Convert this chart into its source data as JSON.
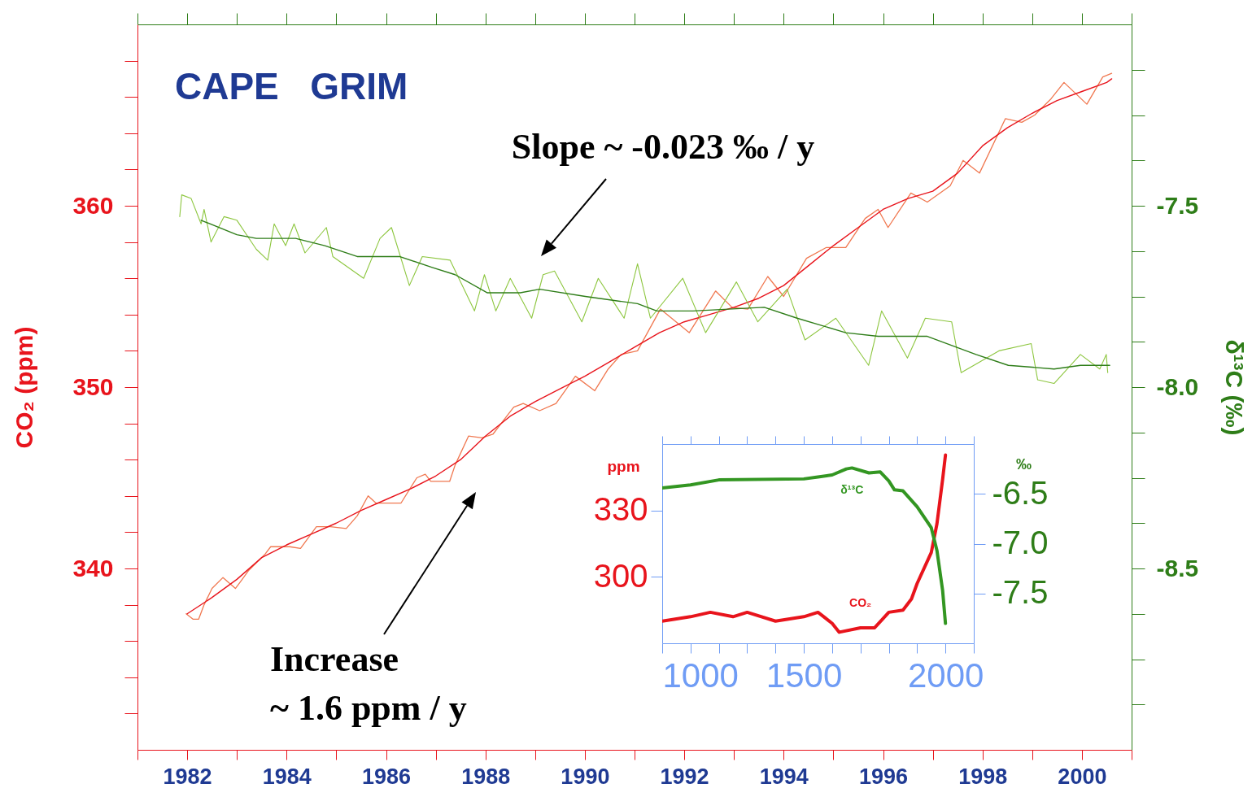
{
  "chart_data": [
    {
      "type": "line",
      "title": "CAPE   GRIM",
      "ylabel": "CO₂ (ppm)",
      "y2label": "δ¹³C (‰)",
      "annotations": [
        "Slope ~ -0.023 ‰ / y",
        "Increase\n~ 1.6 ppm / y"
      ],
      "xlim": [
        1981,
        2001
      ],
      "xticks": [
        {
          "value": 1981,
          "label": null
        },
        1982,
        {
          "value": 1983,
          "label": null
        },
        1984,
        {
          "value": 1985,
          "label": null
        },
        1986,
        {
          "value": 1987,
          "label": null
        },
        1988,
        {
          "value": 1989,
          "label": null
        },
        1990,
        {
          "value": 1991,
          "label": null
        },
        1992,
        {
          "value": 1993,
          "label": null
        },
        1994,
        {
          "value": 1995,
          "label": null
        },
        1996,
        {
          "value": 1997,
          "label": null
        },
        1998,
        {
          "value": 1999,
          "label": null
        },
        2000,
        {
          "value": 2001,
          "label": null
        }
      ],
      "ylim": [
        330,
        370
      ],
      "yticks": [
        {
          "value": 332,
          "label": null
        },
        {
          "value": 334,
          "label": null
        },
        {
          "value": 336,
          "label": null
        },
        {
          "value": 338,
          "label": null
        },
        340,
        {
          "value": 342,
          "label": null
        },
        {
          "value": 344,
          "label": null
        },
        {
          "value": 346,
          "label": null
        },
        {
          "value": 348,
          "label": null
        },
        350,
        {
          "value": 352,
          "label": null
        },
        {
          "value": 354,
          "label": null
        },
        {
          "value": 356,
          "label": null
        },
        {
          "value": 358,
          "label": null
        },
        360,
        {
          "value": 362,
          "label": null
        },
        {
          "value": 364,
          "label": null
        },
        {
          "value": 366,
          "label": null
        },
        {
          "value": 368,
          "label": null
        }
      ],
      "y2lim": [
        -9,
        -7
      ],
      "y2ticks": [
        {
          "value": -8.875,
          "label": null
        },
        {
          "value": -8.75,
          "label": null
        },
        {
          "value": -8.625,
          "label": null
        },
        -8.5,
        {
          "value": -8.375,
          "label": null
        },
        {
          "value": -8.25,
          "label": null
        },
        {
          "value": -8.125,
          "label": null
        },
        {
          "value": -8,
          "label": "-8.0"
        },
        {
          "value": -7.875,
          "label": null
        },
        {
          "value": -7.75,
          "label": null
        },
        {
          "value": -7.625,
          "label": null
        },
        -7.5,
        {
          "value": -7.375,
          "label": null
        },
        {
          "value": -7.25,
          "label": null
        },
        {
          "value": -7.125,
          "label": null
        }
      ],
      "series": [
        {
          "color": "#f07850",
          "x": [
            1981.98,
            1982.12,
            1982.23,
            1982.34,
            1982.5,
            1982.72,
            1982.97,
            1983.08,
            1983.24,
            1983.57,
            1983.68,
            1984.06,
            1984.28,
            1984.6,
            1984.88,
            1985.2,
            1985.42,
            1985.64,
            1985.8,
            1986.3,
            1986.62,
            1986.79,
            1986.9,
            1987.28,
            1987.39,
            1987.66,
            1987.93,
            1988.15,
            1988.57,
            1988.76,
            1989.09,
            1989.42,
            1989.81,
            1990.2,
            1990.47,
            1990.73,
            1991.06,
            1991.52,
            1992.1,
            1992.63,
            1992.96,
            1993.28,
            1993.68,
            1994.0,
            1994.46,
            1994.86,
            1995.25,
            1995.64,
            1995.9,
            1996.1,
            1996.56,
            1996.89,
            1997.35,
            1997.61,
            1997.94,
            1998.46,
            1998.79,
            1999.05,
            1999.38,
            1999.64,
            2000.1,
            2000.42,
            2000.6
          ],
          "values": [
            337.5,
            337.2,
            337.2,
            338.0,
            338.9,
            339.5,
            338.9,
            339.3,
            339.9,
            340.8,
            341.2,
            341.2,
            341.1,
            342.3,
            342.3,
            342.2,
            342.9,
            344.0,
            343.6,
            343.6,
            345.0,
            345.2,
            344.8,
            344.8,
            345.7,
            347.3,
            347.2,
            347.4,
            348.9,
            349.1,
            348.7,
            349.1,
            350.6,
            349.8,
            351.0,
            351.8,
            352.0,
            354.3,
            353.0,
            355.3,
            354.4,
            354.3,
            356.1,
            355.0,
            357.1,
            357.7,
            357.7,
            359.3,
            359.8,
            358.8,
            360.7,
            360.2,
            361.1,
            362.5,
            361.8,
            364.8,
            364.6,
            365.0,
            365.9,
            366.8,
            365.6,
            367.1,
            367.3
          ]
        },
        {
          "color": "#e8141c",
          "x": [
            1982,
            1982.5,
            1983,
            1983.5,
            1984,
            1984.5,
            1985,
            1985.5,
            1986,
            1986.5,
            1987,
            1987.5,
            1988,
            1988.5,
            1989,
            1989.5,
            1990,
            1990.5,
            1991,
            1991.5,
            1992,
            1992.5,
            1993,
            1993.5,
            1994,
            1994.5,
            1995,
            1995.5,
            1996,
            1996.5,
            1997,
            1997.5,
            1998,
            1998.5,
            1999,
            1999.5,
            2000,
            2000.5,
            2000.6
          ],
          "values": [
            337.5,
            338.4,
            339.4,
            340.6,
            341.3,
            341.9,
            342.5,
            343.2,
            343.8,
            344.4,
            345.1,
            346.0,
            347.3,
            348.4,
            349.2,
            349.9,
            350.6,
            351.4,
            352.2,
            353.0,
            353.6,
            354.0,
            354.4,
            354.9,
            355.6,
            356.7,
            357.8,
            358.8,
            359.8,
            360.4,
            360.8,
            361.8,
            363.3,
            364.3,
            365.1,
            365.8,
            366.3,
            366.8,
            367.0
          ]
        },
        {
          "color": "#8dc63f",
          "axis": "y2",
          "x": [
            1981.85,
            1981.89,
            1982.08,
            1982.28,
            1982.34,
            1982.48,
            1982.74,
            1983.0,
            1983.39,
            1983.62,
            1983.75,
            1983.98,
            1984.15,
            1984.37,
            1984.8,
            1984.93,
            1985.55,
            1985.88,
            1986.11,
            1986.47,
            1986.73,
            1987.29,
            1987.78,
            1987.98,
            1988.21,
            1988.5,
            1988.93,
            1989.16,
            1989.39,
            1989.94,
            1990.27,
            1990.79,
            1991.06,
            1991.32,
            1991.97,
            1992.43,
            1993.05,
            1993.48,
            1994.07,
            1994.43,
            1995.05,
            1995.71,
            1995.97,
            1996.49,
            1996.85,
            1997.38,
            1997.57,
            1998.33,
            1998.98,
            1999.11,
            1999.44,
            1999.97,
            2000.36,
            2000.49,
            2000.52
          ],
          "values": [
            -7.53,
            -7.47,
            -7.48,
            -7.55,
            -7.51,
            -7.6,
            -7.53,
            -7.54,
            -7.62,
            -7.65,
            -7.55,
            -7.61,
            -7.55,
            -7.63,
            -7.56,
            -7.64,
            -7.7,
            -7.59,
            -7.56,
            -7.72,
            -7.64,
            -7.65,
            -7.79,
            -7.69,
            -7.79,
            -7.7,
            -7.81,
            -7.69,
            -7.68,
            -7.82,
            -7.7,
            -7.81,
            -7.66,
            -7.81,
            -7.7,
            -7.85,
            -7.71,
            -7.82,
            -7.73,
            -7.87,
            -7.81,
            -7.94,
            -7.79,
            -7.92,
            -7.81,
            -7.82,
            -7.96,
            -7.9,
            -7.88,
            -7.98,
            -7.99,
            -7.91,
            -7.95,
            -7.91,
            -7.96
          ]
        },
        {
          "color": "#2e7d18",
          "axis": "y2",
          "x": [
            1982.28,
            1983.0,
            1983.39,
            1984.18,
            1984.77,
            1985.42,
            1986.27,
            1986.93,
            1987.39,
            1988.04,
            1988.7,
            1989.09,
            1990.01,
            1991.06,
            1991.45,
            1992.17,
            1993.61,
            1994.27,
            1995.25,
            1995.9,
            1996.89,
            1997.87,
            1998.52,
            1999.44,
            1999.97,
            2000.56
          ],
          "values": [
            -7.54,
            -7.58,
            -7.59,
            -7.59,
            -7.61,
            -7.64,
            -7.64,
            -7.67,
            -7.69,
            -7.74,
            -7.74,
            -7.73,
            -7.75,
            -7.77,
            -7.79,
            -7.79,
            -7.78,
            -7.81,
            -7.85,
            -7.86,
            -7.86,
            -7.91,
            -7.94,
            -7.95,
            -7.94,
            -7.94
          ]
        }
      ]
    },
    {
      "type": "line",
      "ylabel": "ppm",
      "y2label": "‰",
      "xlim": [
        1000,
        2100
      ],
      "xticks": [
        1000,
        {
          "value": 1100,
          "label": null
        },
        {
          "value": 1200,
          "label": null
        },
        {
          "value": 1300,
          "label": null
        },
        {
          "value": 1400,
          "label": null
        },
        1500,
        {
          "value": 1600,
          "label": null
        },
        {
          "value": 1700,
          "label": null
        },
        {
          "value": 1800,
          "label": null
        },
        {
          "value": 1900,
          "label": null
        },
        2000,
        {
          "value": 2100,
          "label": null
        }
      ],
      "ylim": [
        270,
        360
      ],
      "yticks": [
        300,
        330
      ],
      "y2lim": [
        -8,
        -6
      ],
      "y2ticks": [
        -6.5,
        {
          "value": -7,
          "label": "-7.0"
        },
        -7.5
      ],
      "series": [
        {
          "name": "CO₂",
          "color": "#e8141c",
          "x": [
            1000,
            1100,
            1170,
            1250,
            1300,
            1400,
            1450,
            1500,
            1550,
            1600,
            1625,
            1700,
            1750,
            1800,
            1850,
            1880,
            1900,
            1950,
            1970,
            1990,
            2000
          ],
          "values": [
            280,
            282,
            284,
            282,
            284,
            280,
            281,
            282,
            284,
            279,
            275,
            277,
            277,
            284,
            285,
            290,
            297,
            311,
            324,
            344,
            355
          ]
        },
        {
          "name": "δ¹³C",
          "color": "#339622",
          "axis": "y2",
          "x": [
            1000,
            1100,
            1200,
            1500,
            1550,
            1600,
            1650,
            1670,
            1730,
            1770,
            1800,
            1820,
            1850,
            1900,
            1950,
            1970,
            1990,
            2000
          ],
          "values": [
            -6.44,
            -6.41,
            -6.36,
            -6.35,
            -6.33,
            -6.31,
            -6.25,
            -6.24,
            -6.29,
            -6.28,
            -6.37,
            -6.46,
            -6.47,
            -6.63,
            -6.84,
            -7.07,
            -7.47,
            -7.8
          ]
        }
      ]
    }
  ]
}
